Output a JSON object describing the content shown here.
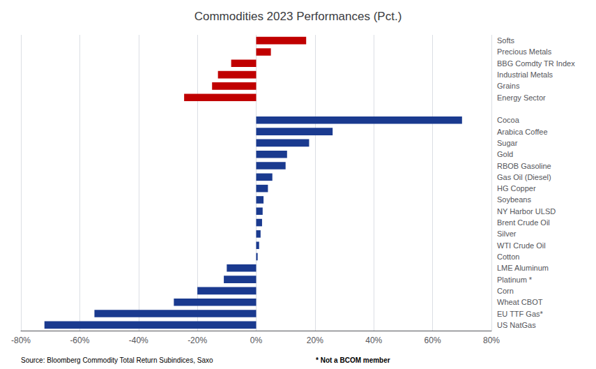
{
  "chart_data": {
    "type": "bar",
    "orientation": "horizontal",
    "title": "Commodities 2023 Performances (Pct.)",
    "categories": [
      "Softs",
      "Precious Metals",
      "BBG Comdty TR Index",
      "Industrial Metals",
      "Grains",
      "Energy Sector",
      null,
      "Cocoa",
      "Arabica Coffee",
      "Sugar",
      "Gold",
      "RBOB Gasoline",
      "Gas Oil (Diesel)",
      "HG Copper",
      "Soybeans",
      "NY Harbor ULSD",
      "Brent Crude Oil",
      "Silver",
      "WTI Crude Oil",
      "Cotton",
      "LME Aluminum",
      "Platinum *",
      "Corn",
      "Wheat CBOT",
      "EU TTF Gas*",
      "US NatGas"
    ],
    "values": [
      17.0,
      5.0,
      -8.5,
      -13.0,
      -15.0,
      -24.5,
      null,
      70.0,
      26.0,
      18.0,
      10.5,
      10.0,
      5.5,
      4.0,
      2.5,
      2.2,
      2.0,
      1.5,
      1.0,
      0.5,
      -10.0,
      -11.0,
      -20.0,
      -28.0,
      -55.0,
      -72.0
    ],
    "colors": [
      "#c00000",
      "#c00000",
      "#c00000",
      "#c00000",
      "#c00000",
      "#c00000",
      null,
      "#1a3a8f",
      "#1a3a8f",
      "#1a3a8f",
      "#1a3a8f",
      "#1a3a8f",
      "#1a3a8f",
      "#1a3a8f",
      "#1a3a8f",
      "#1a3a8f",
      "#1a3a8f",
      "#1a3a8f",
      "#1a3a8f",
      "#1a3a8f",
      "#1a3a8f",
      "#1a3a8f",
      "#1a3a8f",
      "#1a3a8f",
      "#1a3a8f",
      "#1a3a8f"
    ],
    "xlim": [
      -80,
      80
    ],
    "xticks": [
      {
        "value": -80,
        "label": "-80%"
      },
      {
        "value": -60,
        "label": "-60%"
      },
      {
        "value": -40,
        "label": "-40%"
      },
      {
        "value": -20,
        "label": "-20%"
      },
      {
        "value": 0,
        "label": "0%"
      },
      {
        "value": 20,
        "label": "20%"
      },
      {
        "value": 40,
        "label": "40%"
      },
      {
        "value": 60,
        "label": "60%"
      },
      {
        "value": 80,
        "label": "80%"
      }
    ],
    "grid": true,
    "annotations": [
      "Source: Bloomberg Commodity Total Return Subindices, Saxo",
      "* Not a BCOM member"
    ]
  }
}
